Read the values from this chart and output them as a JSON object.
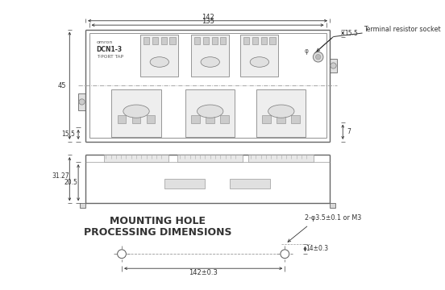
{
  "bg_color": "#ffffff",
  "line_color": "#666666",
  "text_color": "#333333",
  "title1": "MOUNTING HOLE",
  "title2": "PROCESSING DIMENSIONS",
  "label_terminal": "Terminal resistor socket",
  "label_omron": "omron",
  "label_dcn": "DCN1-3",
  "label_tap": "T-PORT TAP",
  "dim_142": "142",
  "dim_135": "135",
  "dim_45": "45",
  "dim_155_top": "15.5",
  "dim_155_bot": "15.5",
  "dim_7": "7",
  "dim_3127": "31.27",
  "dim_205": "20.5",
  "dim_142pm": "142±0.3",
  "dim_14pm": "14±0.3",
  "dim_hole": "2-φ3.5±0.1 or M3",
  "dim_phi": "φ"
}
